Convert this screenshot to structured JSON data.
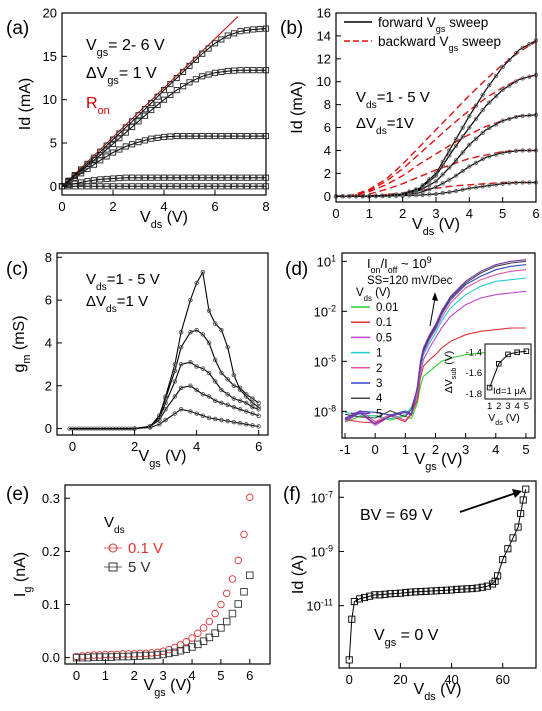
{
  "chart_data": [
    {
      "type": "line",
      "panel_label": "(a)",
      "xlabel": "V",
      "xlabel_sub": "ds",
      "xlabel_unit": " (V)",
      "ylabel": "Id (mA)",
      "xlim": [
        0,
        8
      ],
      "ylim": [
        -1,
        20
      ],
      "xticks": [
        0,
        2,
        4,
        6,
        8
      ],
      "yticks": [
        0,
        5,
        10,
        15,
        20
      ],
      "x": [
        0,
        0.5,
        1,
        1.5,
        2,
        2.5,
        3,
        3.5,
        4,
        4.5,
        5,
        5.5,
        6,
        6.5,
        7,
        7.5,
        8
      ],
      "series": [
        {
          "values": [
            0,
            0,
            0,
            0,
            0,
            0,
            0,
            0,
            0,
            0,
            0,
            0,
            0,
            0,
            0,
            0,
            0
          ]
        },
        {
          "values": [
            0,
            0.3,
            0.6,
            0.8,
            0.9,
            1.0,
            1.0,
            1.0,
            1.0,
            1.0,
            1.0,
            1.0,
            1.0,
            1.0,
            1.0,
            1.0,
            1.0
          ]
        },
        {
          "values": [
            0,
            1.0,
            2.0,
            3.0,
            3.9,
            4.6,
            5.1,
            5.5,
            5.7,
            5.8,
            5.8,
            5.8,
            5.8,
            5.8,
            5.8,
            5.8,
            5.8
          ]
        },
        {
          "values": [
            0,
            1.2,
            2.4,
            3.6,
            4.9,
            6.2,
            7.5,
            8.8,
            10.0,
            11.1,
            12.0,
            12.7,
            13.1,
            13.3,
            13.4,
            13.4,
            13.4
          ]
        },
        {
          "values": [
            0,
            1.3,
            2.6,
            4.0,
            5.4,
            6.8,
            8.2,
            9.6,
            11.1,
            12.5,
            13.9,
            15.3,
            16.5,
            17.4,
            17.9,
            18.1,
            18.2
          ]
        }
      ],
      "line_series": [
        {
          "name": "Ron",
          "x": [
            0,
            6.9
          ],
          "values": [
            0,
            19.6
          ]
        }
      ],
      "annotations": [
        {
          "text": "V",
          "sub": "gs",
          "rest": "= 2- 6 V"
        },
        {
          "text": "ΔV",
          "sub": "gs",
          "rest": "= 1 V"
        },
        {
          "text": "R",
          "sub": "on",
          "rest": ""
        }
      ]
    },
    {
      "type": "line",
      "panel_label": "(b)",
      "xlabel": "V",
      "xlabel_sub": "ds",
      "xlabel_unit": " (V)",
      "ylabel": "Id (mA)",
      "xlim": [
        0,
        6
      ],
      "ylim": [
        -0.5,
        16
      ],
      "xticks": [
        0,
        1,
        2,
        3,
        4,
        5,
        6
      ],
      "yticks": [
        0,
        2,
        4,
        6,
        8,
        10,
        12,
        14,
        16
      ],
      "legend": [
        {
          "name": "forward V",
          "sub": "gs",
          "rest": " sweep",
          "color": "#000000",
          "dash": false
        },
        {
          "name": "backward V",
          "sub": "gs",
          "rest": " sweep",
          "color": "#dd1111",
          "dash": true
        }
      ],
      "legend_position": "top-right",
      "x": [
        0,
        0.5,
        1,
        1.5,
        2,
        2.5,
        3,
        3.5,
        4,
        4.5,
        5,
        5.5,
        6
      ],
      "series": [
        {
          "name": "forward",
          "values": [
            0,
            0,
            0,
            0.02,
            0.05,
            0.1,
            0.2,
            0.4,
            0.7,
            0.9,
            1.1,
            1.2,
            1.2
          ]
        },
        {
          "name": "forward",
          "values": [
            0,
            0,
            0.01,
            0.03,
            0.1,
            0.3,
            0.8,
            1.6,
            2.6,
            3.4,
            3.8,
            4.0,
            4.0
          ]
        },
        {
          "name": "forward",
          "values": [
            0,
            0,
            0.01,
            0.04,
            0.15,
            0.5,
            1.3,
            2.8,
            4.5,
            5.8,
            6.6,
            7.0,
            7.1
          ]
        },
        {
          "name": "forward",
          "values": [
            0,
            0,
            0.02,
            0.05,
            0.2,
            0.6,
            1.8,
            4.0,
            6.0,
            7.9,
            9.3,
            10.2,
            10.6
          ]
        },
        {
          "name": "forward",
          "values": [
            0,
            0,
            0.02,
            0.06,
            0.2,
            0.7,
            2.0,
            4.5,
            7.0,
            9.3,
            11.3,
            12.8,
            13.6
          ]
        }
      ],
      "dashed_series": [
        {
          "name": "backward",
          "values": [
            0,
            0,
            0.05,
            0.15,
            0.3,
            0.5,
            0.7,
            0.9,
            1.0,
            1.1,
            1.2,
            1.2,
            1.2
          ]
        },
        {
          "name": "backward",
          "values": [
            0,
            0.05,
            0.2,
            0.6,
            1.1,
            1.7,
            2.3,
            2.8,
            3.3,
            3.6,
            3.9,
            4.0,
            4.0
          ]
        },
        {
          "name": "backward",
          "values": [
            0,
            0.1,
            0.4,
            1.0,
            1.8,
            2.8,
            3.7,
            4.6,
            5.4,
            6.1,
            6.6,
            7.0,
            7.1
          ]
        },
        {
          "name": "backward",
          "values": [
            0,
            0.1,
            0.5,
            1.3,
            2.4,
            3.7,
            5.0,
            6.3,
            7.5,
            8.6,
            9.5,
            10.2,
            10.6
          ]
        },
        {
          "name": "backward",
          "values": [
            0,
            0.1,
            0.6,
            1.5,
            2.8,
            4.3,
            5.8,
            7.3,
            8.8,
            10.2,
            11.5,
            12.6,
            13.5
          ]
        }
      ],
      "annotations": [
        {
          "text": "V",
          "sub": "ds",
          "rest": "=1 - 5 V"
        },
        {
          "text": "ΔV",
          "sub": "ds",
          "rest": "=1V"
        }
      ]
    },
    {
      "type": "line",
      "panel_label": "(c)",
      "xlabel": "V",
      "xlabel_sub": "gs",
      "xlabel_unit": " (V)",
      "ylabel": "g",
      "ylabel_sub": "m",
      "ylabel_unit": " (mS)",
      "xlim": [
        -0.5,
        6.3
      ],
      "ylim": [
        -0.3,
        8.2
      ],
      "xticks": [
        0,
        2,
        4,
        6
      ],
      "yticks": [
        0,
        2,
        4,
        6,
        8
      ],
      "x": [
        2.0,
        2.5,
        2.8,
        3.0,
        3.3,
        3.5,
        3.8,
        4.0,
        4.2,
        4.4,
        4.6,
        4.8,
        5.0,
        5.2,
        5.4,
        5.6,
        5.8,
        6.0
      ],
      "series": [
        {
          "values": [
            0,
            0.05,
            0.2,
            0.4,
            0.7,
            0.9,
            0.8,
            0.7,
            0.6,
            0.5,
            0.45,
            0.4,
            0.35,
            0.3,
            0.25,
            0.2,
            0.15,
            0.1
          ]
        },
        {
          "values": [
            0,
            0.1,
            0.4,
            0.9,
            1.5,
            1.9,
            2.0,
            1.8,
            1.6,
            1.5,
            1.3,
            1.2,
            1.1,
            1.0,
            0.9,
            0.8,
            0.7,
            0.6
          ]
        },
        {
          "values": [
            0,
            0.1,
            0.5,
            1.2,
            2.2,
            3.0,
            3.1,
            2.9,
            2.8,
            2.6,
            2.2,
            1.8,
            1.6,
            1.4,
            1.3,
            1.2,
            1.0,
            0.9
          ]
        },
        {
          "values": [
            0,
            0.1,
            0.6,
            1.4,
            2.7,
            3.8,
            4.5,
            4.6,
            4.4,
            4.0,
            3.2,
            2.6,
            2.3,
            2.0,
            1.9,
            1.6,
            1.4,
            1.2
          ]
        },
        {
          "values": [
            0,
            0.1,
            0.6,
            1.5,
            3.0,
            4.5,
            6.0,
            6.8,
            7.3,
            5.5,
            4.9,
            4.6,
            3.8,
            2.5,
            1.8,
            1.5,
            1.2,
            1.0
          ]
        }
      ],
      "annotations": [
        {
          "text": "V",
          "sub": "ds",
          "rest": "=1 - 5 V"
        },
        {
          "text": "ΔV",
          "sub": "ds",
          "rest": "=1 V"
        }
      ]
    },
    {
      "type": "line",
      "panel_label": "(d)",
      "xlabel": "V",
      "xlabel_sub": "gs",
      "xlabel_unit": " (V)",
      "ylabel": "",
      "yscale": "log",
      "xlim": [
        -1.1,
        5.3
      ],
      "ylim_exp": [
        -9.6,
        1.5
      ],
      "xticks": [
        -1,
        0,
        1,
        2,
        3,
        4,
        5
      ],
      "yticks_exp": [
        1,
        -2,
        -5,
        -8
      ],
      "ytick_base": "10",
      "annotation_ratio": {
        "main": "I",
        "sub1": "on",
        "mid": "/I",
        "sub2": "off",
        "rest": " ~ 10",
        "sup": "9"
      },
      "annotation_ss": "SS=120 mV/Dec",
      "legend_title": "V",
      "legend_title_sub": "ds",
      "legend_title_rest": " (V)",
      "legend": [
        {
          "name": "0.01",
          "color": "#33cc33"
        },
        {
          "name": "0.1",
          "color": "#dd3333"
        },
        {
          "name": "0.5",
          "color": "#bb44cc"
        },
        {
          "name": "1",
          "color": "#22cccc"
        },
        {
          "name": "2",
          "color": "#dd55aa"
        },
        {
          "name": "3",
          "color": "#3344cc"
        },
        {
          "name": "4",
          "color": "#444444"
        },
        {
          "name": "5",
          "color": "#7733aa"
        }
      ],
      "x": [
        -1,
        -0.5,
        0,
        0.5,
        1,
        1.2,
        1.4,
        1.5,
        1.6,
        1.8,
        2,
        2.2,
        2.5,
        3,
        3.5,
        4,
        4.5,
        5
      ],
      "series_log": [
        {
          "name": "0.01",
          "values": [
            -8.4,
            -8.3,
            -8.5,
            -8.4,
            -8.4,
            -8.2,
            -7.5,
            -6.5,
            -5.9,
            -5.6,
            -5.3,
            -5.0,
            -4.8,
            -4.6,
            -4.5,
            -4.4,
            -4.4,
            -4.4
          ]
        },
        {
          "name": "0.1",
          "values": [
            -8.6,
            -8.4,
            -8.7,
            -8.5,
            -8.5,
            -8.3,
            -7.3,
            -6.0,
            -5.3,
            -4.9,
            -4.6,
            -4.2,
            -3.8,
            -3.4,
            -3.2,
            -3.1,
            -3.0,
            -3.0
          ]
        },
        {
          "name": "0.5",
          "values": [
            -8.5,
            -8.2,
            -8.6,
            -8.3,
            -8.3,
            -8.1,
            -7.0,
            -5.7,
            -4.9,
            -4.2,
            -3.6,
            -3.0,
            -2.3,
            -1.6,
            -1.2,
            -1.0,
            -0.9,
            -0.8
          ]
        },
        {
          "name": "1",
          "values": [
            -8.3,
            -8.1,
            -8.4,
            -8.2,
            -8.2,
            -8.0,
            -6.8,
            -5.4,
            -4.6,
            -3.9,
            -3.3,
            -2.6,
            -1.8,
            -1.0,
            -0.5,
            -0.2,
            -0.1,
            0.0
          ]
        },
        {
          "name": "2",
          "values": [
            -8.4,
            -8.2,
            -8.5,
            -8.3,
            -8.3,
            -8.1,
            -6.7,
            -5.3,
            -4.5,
            -3.7,
            -3.1,
            -2.4,
            -1.5,
            -0.6,
            -0.1,
            0.2,
            0.4,
            0.5
          ]
        },
        {
          "name": "3",
          "values": [
            -8.2,
            -8.0,
            -8.3,
            -8.1,
            -8.1,
            -7.9,
            -6.6,
            -5.2,
            -4.4,
            -3.6,
            -3.0,
            -2.2,
            -1.3,
            -0.4,
            0.1,
            0.5,
            0.7,
            0.8
          ]
        },
        {
          "name": "4",
          "values": [
            -8.3,
            -8.1,
            -8.4,
            -8.2,
            -8.2,
            -8.0,
            -6.6,
            -5.1,
            -4.3,
            -3.5,
            -2.9,
            -2.1,
            -1.2,
            -0.3,
            0.3,
            0.7,
            0.9,
            1.0
          ]
        },
        {
          "name": "5",
          "values": [
            -8.4,
            -8.2,
            -8.5,
            -8.3,
            -8.3,
            -8.1,
            -6.5,
            -5.0,
            -4.2,
            -3.4,
            -2.8,
            -2.0,
            -1.1,
            -0.2,
            0.4,
            0.8,
            1.0,
            1.1
          ]
        }
      ],
      "inset": {
        "xlabel": "V",
        "xlabel_sub": "ds",
        "xlabel_unit": " (V)",
        "ylabel": "ΔV",
        "ylabel_sub": "sub",
        "ylabel_unit": " (V)",
        "annotation": "Id=1 μA",
        "xlim": [
          0.5,
          5.5
        ],
        "ylim": [
          -1.85,
          -1.32
        ],
        "xticks": [
          1,
          2,
          3,
          4,
          5
        ],
        "yticks": [
          -1.4,
          -1.6,
          -1.8
        ],
        "x": [
          1,
          2,
          3,
          4,
          5
        ],
        "values": [
          -1.74,
          -1.51,
          -1.42,
          -1.4,
          -1.39
        ]
      }
    },
    {
      "type": "scatter",
      "panel_label": "(e)",
      "xlabel": "V",
      "xlabel_sub": "gs",
      "xlabel_unit": " (V)",
      "ylabel": "I",
      "ylabel_sub": "g",
      "ylabel_unit": " (nA)",
      "xlim": [
        -0.4,
        6.7
      ],
      "ylim": [
        -0.012,
        0.325
      ],
      "xticks": [
        0,
        1,
        2,
        3,
        4,
        5,
        6
      ],
      "yticks": [
        0.0,
        0.1,
        0.2,
        0.3
      ],
      "legend_title": "V",
      "legend_title_sub": "ds",
      "legend": [
        {
          "name": "0.1 V",
          "color": "#dd3333",
          "marker": "circle"
        },
        {
          "name": "5 V",
          "color": "#333333",
          "marker": "square"
        }
      ],
      "x": [
        0,
        0.2,
        0.4,
        0.6,
        0.8,
        1,
        1.2,
        1.4,
        1.6,
        1.8,
        2,
        2.2,
        2.4,
        2.6,
        2.8,
        3,
        3.2,
        3.4,
        3.6,
        3.8,
        4,
        4.2,
        4.4,
        4.6,
        4.8,
        5,
        5.2,
        5.4,
        5.6,
        5.8,
        6
      ],
      "series": [
        {
          "name": "0.1 V",
          "values": [
            0.002,
            0.003,
            0.004,
            0.005,
            0.005,
            0.006,
            0.006,
            0.006,
            0.007,
            0.007,
            0.007,
            0.008,
            0.008,
            0.009,
            0.01,
            0.012,
            0.015,
            0.019,
            0.024,
            0.03,
            0.037,
            0.046,
            0.056,
            0.068,
            0.083,
            0.1,
            0.121,
            0.148,
            0.183,
            0.232,
            0.302
          ]
        },
        {
          "name": "5 V",
          "values": [
            0.0,
            0.0,
            0.0,
            0.001,
            0.001,
            0.001,
            0.001,
            0.002,
            0.002,
            0.002,
            0.003,
            0.003,
            0.004,
            0.004,
            0.005,
            0.006,
            0.008,
            0.01,
            0.013,
            0.016,
            0.02,
            0.025,
            0.031,
            0.038,
            0.046,
            0.056,
            0.068,
            0.083,
            0.101,
            0.124,
            0.155
          ]
        }
      ]
    },
    {
      "type": "scatter",
      "panel_label": "(f)",
      "xlabel": "V",
      "xlabel_sub": "ds",
      "xlabel_unit": " (V)",
      "ylabel": "Id (A)",
      "yscale": "log",
      "xlim": [
        -4,
        73
      ],
      "ylim_exp": [
        -13.3,
        -6.4
      ],
      "xticks": [
        0,
        20,
        40,
        60
      ],
      "yticks_exp": [
        -7,
        -9,
        -11
      ],
      "ytick_base": "10",
      "annotations": [
        {
          "text": "BV = 69 V"
        },
        {
          "text": "V",
          "sub": "gs",
          "rest": " = 0 V"
        }
      ],
      "x": [
        0,
        1,
        2,
        4,
        6,
        8,
        10,
        12,
        14,
        16,
        18,
        20,
        22,
        24,
        26,
        28,
        30,
        32,
        34,
        36,
        38,
        40,
        42,
        44,
        46,
        48,
        50,
        52,
        54,
        56,
        57,
        58,
        60,
        62,
        64,
        66,
        67,
        68,
        69
      ],
      "values_log": [
        -13.0,
        -11.5,
        -10.85,
        -10.75,
        -10.7,
        -10.65,
        -10.6,
        -10.6,
        -10.58,
        -10.56,
        -10.55,
        -10.54,
        -10.52,
        -10.5,
        -10.49,
        -10.48,
        -10.47,
        -10.46,
        -10.45,
        -10.44,
        -10.43,
        -10.42,
        -10.4,
        -10.39,
        -10.38,
        -10.37,
        -10.35,
        -10.32,
        -10.28,
        -10.2,
        -10.1,
        -9.9,
        -9.3,
        -8.9,
        -8.5,
        -8.1,
        -7.6,
        -7.1,
        -6.7
      ]
    }
  ]
}
